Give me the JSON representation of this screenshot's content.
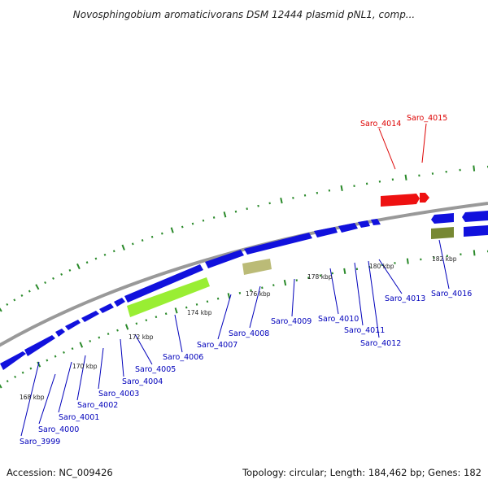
{
  "title": "Novosphingobium aromaticivorans DSM 12444 plasmid pNL1, comp...",
  "footer": {
    "accession": "Accession: NC_009426",
    "summary": "Topology: circular; Length: 184,462 bp; Genes: 182"
  },
  "colors": {
    "forward_gene": "#1111dd",
    "reverse_gene": "#1111dd",
    "highlight_gene": "#ee1111",
    "backbone": "#999999",
    "ticks": "#2a8a2a",
    "blue_label": "#0000bb",
    "red_label": "#dd0000",
    "lime_feature": "#99ee33",
    "tan_feature": "#bbbb77",
    "olive_feature": "#778833"
  },
  "kbp_labels": [
    "168 kbp",
    "170 kbp",
    "172 kbp",
    "174 kbp",
    "176 kbp",
    "178 kbp",
    "180 kbp",
    "182 kbp"
  ],
  "gene_labels_blue": [
    "Saro_3999",
    "Saro_4000",
    "Saro_4001",
    "Saro_4002",
    "Saro_4003",
    "Saro_4004",
    "Saro_4005",
    "Saro_4006",
    "Saro_4007",
    "Saro_4008",
    "Saro_4009",
    "Saro_4010",
    "Saro_4011",
    "Saro_4012",
    "Saro_4013",
    "Saro_4016"
  ],
  "gene_labels_red": [
    "Saro_4014",
    "Saro_4015"
  ]
}
